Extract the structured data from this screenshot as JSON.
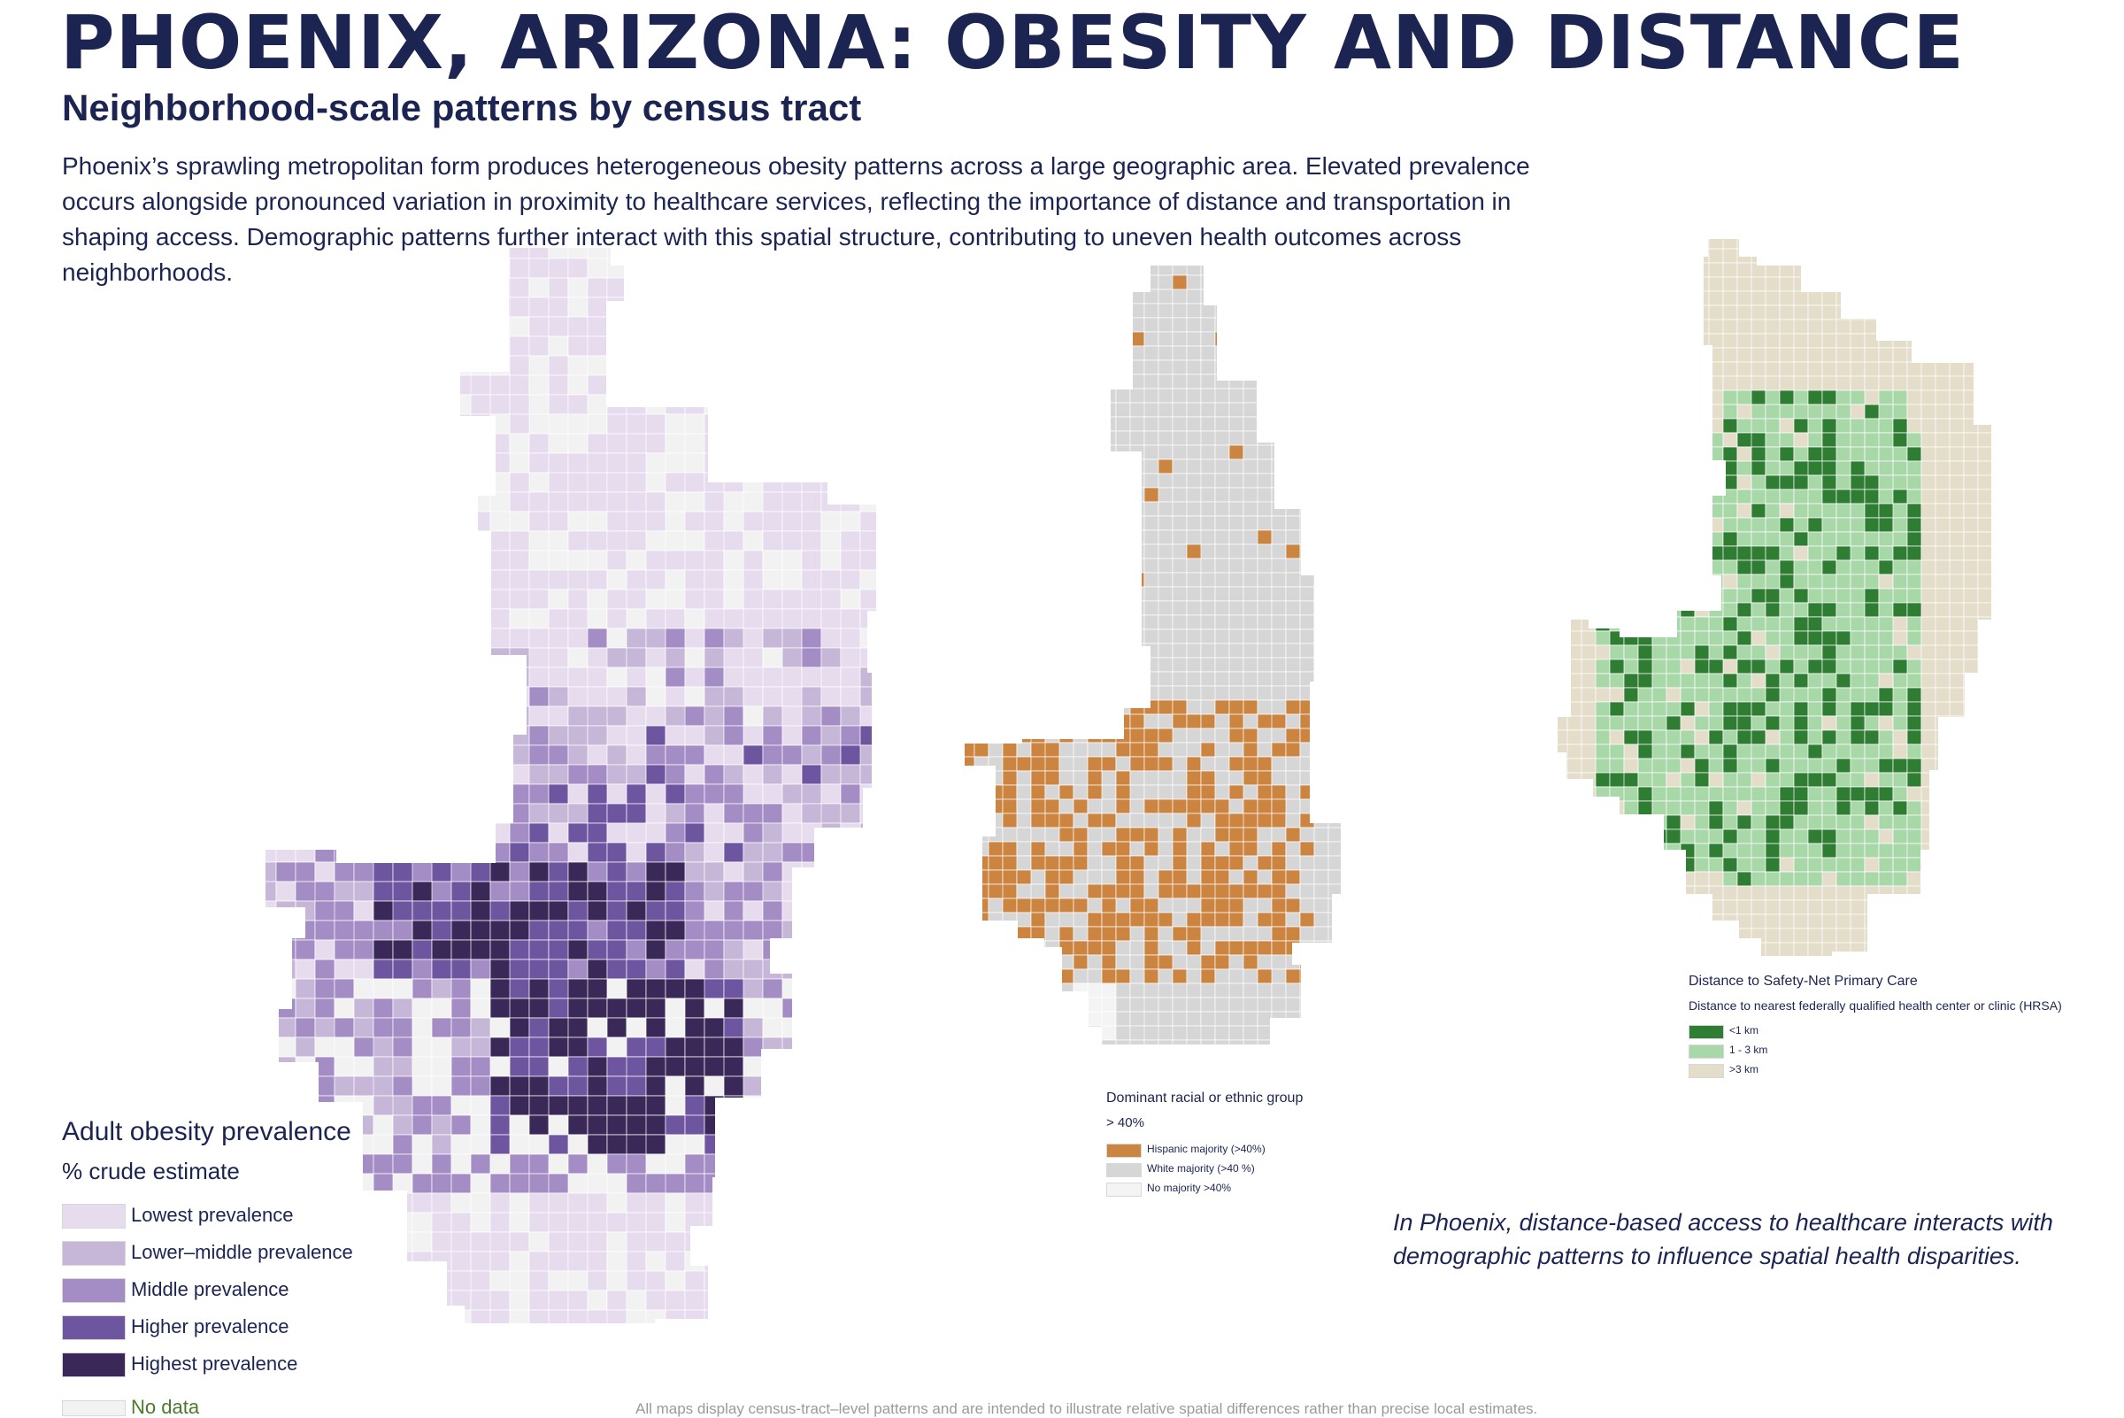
{
  "header": {
    "title": "PHOENIX, ARIZONA: OBESITY AND DISTANCE",
    "subtitle": "Neighborhood-scale patterns by census tract",
    "intro": "Phoenix’s sprawling metropolitan form produces heterogeneous obesity patterns across a large geographic area. Elevated prevalence occurs alongside pronounced variation in proximity to healthcare services, reflecting the importance of distance and transportation in shaping access. Demographic patterns further interact with this spatial structure, contributing to uneven health outcomes across neighborhoods."
  },
  "maps": {
    "obesity": {
      "legend_title": "Adult obesity prevalence",
      "legend_unit": "% crude estimate",
      "classes": [
        {
          "label": "Lowest prevalence",
          "color": "#e6dced"
        },
        {
          "label": "Lower–middle prevalence",
          "color": "#c6b6d8"
        },
        {
          "label": "Middle prevalence",
          "color": "#a48cc4"
        },
        {
          "label": "Higher prevalence",
          "color": "#6e55a0"
        },
        {
          "label": "Highest prevalence",
          "color": "#3a2858"
        }
      ],
      "no_data": {
        "label": "No data",
        "color": "#f2f2f2"
      }
    },
    "race": {
      "legend_title": "Dominant racial or ethnic group",
      "legend_sub": "> 40%",
      "classes": [
        {
          "label": "Hispanic majority (>40%)",
          "color": "#cc8441"
        },
        {
          "label": "White majority (>40 %)",
          "color": "#d6d6d6"
        },
        {
          "label": "No majority >40%",
          "color": "#f4f4f4"
        }
      ]
    },
    "distance": {
      "legend_title": "Distance to Safety-Net Primary Care",
      "legend_sub": "Distance to nearest federally qualified health center or clinic (HRSA)",
      "classes": [
        {
          "label": "<1 km",
          "color": "#2e7d32"
        },
        {
          "label": "1 - 3 km",
          "color": "#a8d8a8"
        },
        {
          "label": ">3 km",
          "color": "#e3ddca"
        }
      ]
    }
  },
  "callout": "In Phoenix, distance-based access to healthcare interacts with demographic patterns to influence spatial health disparities.",
  "footnote": "All maps display census-tract–level patterns and are intended to illustrate relative spatial differences rather than precise local estimates."
}
